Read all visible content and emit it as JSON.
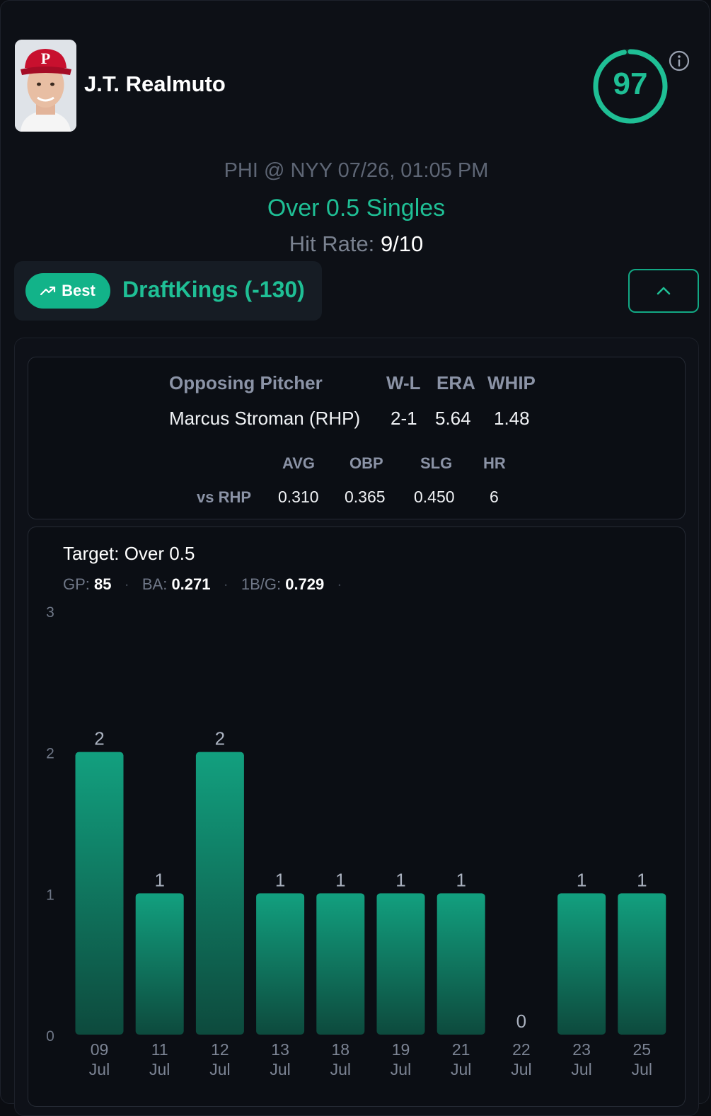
{
  "player": {
    "name": "J.T. Realmuto",
    "score": "97"
  },
  "game": {
    "matchup": "PHI @ NYY 07/26, 01:05 PM",
    "market": "Over 0.5 Singles",
    "hit_rate_label": "Hit Rate:",
    "hit_rate_value": "9/10"
  },
  "book": {
    "badge_label": "Best",
    "name": "DraftKings (-130)"
  },
  "pitcher": {
    "header_label": "Opposing Pitcher",
    "cols": [
      "W-L",
      "ERA",
      "WHIP"
    ],
    "name": "Marcus Stroman (RHP)",
    "wl": "2-1",
    "era": "5.64",
    "whip": "1.48",
    "split_cols": [
      "AVG",
      "OBP",
      "SLG",
      "HR"
    ],
    "split_label": "vs RHP",
    "split_values": [
      "0.310",
      "0.365",
      "0.450",
      "6"
    ]
  },
  "chart_header": {
    "target": "Target: Over 0.5",
    "gp_label": "GP:",
    "gp": "85",
    "ba_label": "BA:",
    "ba": "0.271",
    "pg_label": "1B/G:",
    "pg": "0.729"
  },
  "colors": {
    "accent": "#1fbf95",
    "bar_top": "#12a07f",
    "bar_bottom": "#0d4a3d"
  },
  "chart_data": {
    "type": "bar",
    "categories": [
      "09 Jul",
      "11 Jul",
      "12 Jul",
      "13 Jul",
      "18 Jul",
      "19 Jul",
      "21 Jul",
      "22 Jul",
      "23 Jul",
      "25 Jul"
    ],
    "values": [
      2,
      1,
      2,
      1,
      1,
      1,
      1,
      0,
      1,
      1
    ],
    "yticks": [
      0,
      1,
      2,
      3
    ],
    "ylim": [
      0,
      3
    ],
    "title": "",
    "xlabel": "",
    "ylabel": ""
  }
}
